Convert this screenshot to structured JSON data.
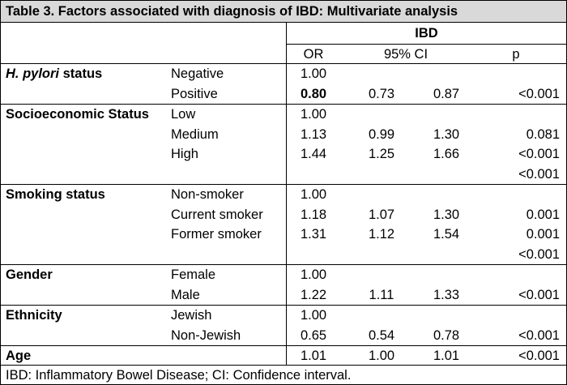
{
  "caption": "Table 3. Factors associated with diagnosis of IBD: Multivariate analysis",
  "header": {
    "group": "IBD",
    "or": "OR",
    "ci": "95% CI",
    "p": "p"
  },
  "groups": [
    {
      "label_italic": "H. pylori",
      "label_rest": " status",
      "rows": [
        {
          "sub": "Negative",
          "or": "1.00",
          "lo": "",
          "hi": "",
          "p": ""
        },
        {
          "sub": "Positive",
          "or": "0.80",
          "or_bold": true,
          "lo": "0.73",
          "hi": "0.87",
          "p": "<0.001"
        }
      ]
    },
    {
      "label": "Socioeconomic Status",
      "rows": [
        {
          "sub": "Low",
          "or": "1.00",
          "lo": "",
          "hi": "",
          "p": ""
        },
        {
          "sub": "Medium",
          "or": "1.13",
          "lo": "0.99",
          "hi": "1.30",
          "p": "0.081"
        },
        {
          "sub": "High",
          "or": "1.44",
          "lo": "1.25",
          "hi": "1.66",
          "p": "<0.001"
        },
        {
          "sub": "",
          "or": "",
          "lo": "",
          "hi": "",
          "p": "<0.001"
        }
      ]
    },
    {
      "label": "Smoking status",
      "rows": [
        {
          "sub": "Non-smoker",
          "or": "1.00",
          "lo": "",
          "hi": "",
          "p": ""
        },
        {
          "sub": "Current smoker",
          "or": "1.18",
          "lo": "1.07",
          "hi": "1.30",
          "p": "0.001"
        },
        {
          "sub": "Former smoker",
          "or": "1.31",
          "lo": "1.12",
          "hi": "1.54",
          "p": "0.001"
        },
        {
          "sub": "",
          "or": "",
          "lo": "",
          "hi": "",
          "p": "<0.001"
        }
      ]
    },
    {
      "label": "Gender",
      "rows": [
        {
          "sub": "Female",
          "or": "1.00",
          "lo": "",
          "hi": "",
          "p": ""
        },
        {
          "sub": "Male",
          "or": "1.22",
          "lo": "1.11",
          "hi": "1.33",
          "p": "<0.001"
        }
      ]
    },
    {
      "label": "Ethnicity",
      "rows": [
        {
          "sub": "Jewish",
          "or": "1.00",
          "lo": "",
          "hi": "",
          "p": ""
        },
        {
          "sub": "Non-Jewish",
          "or": "0.65",
          "lo": "0.54",
          "hi": "0.78",
          "p": "<0.001"
        }
      ]
    },
    {
      "label": "Age",
      "rows": [
        {
          "sub": "",
          "or": "1.01",
          "lo": "1.00",
          "hi": "1.01",
          "p": "<0.001"
        }
      ]
    }
  ],
  "footer": "IBD: Inflammatory Bowel Disease; CI: Confidence interval."
}
